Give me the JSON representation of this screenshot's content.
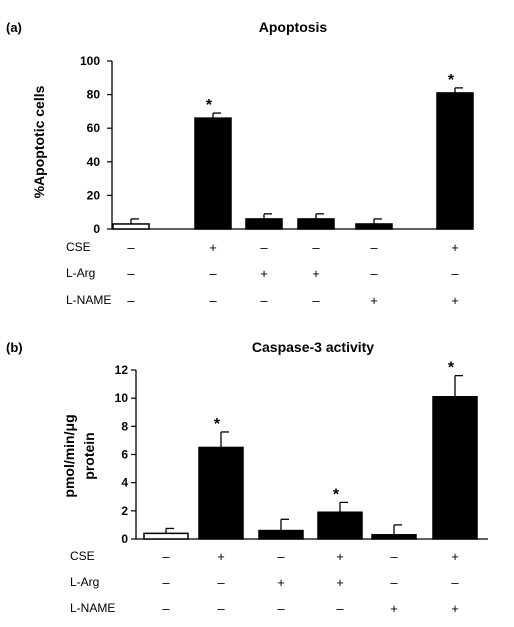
{
  "chart_data": [
    {
      "type": "bar",
      "panel_label": "(a)",
      "title": "Apoptosis",
      "xlabel": "",
      "ylabel": "%Apoptotic cells",
      "ylim": [
        0,
        100
      ],
      "yticks": [
        0,
        20,
        40,
        60,
        80,
        100
      ],
      "grid": false,
      "values": [
        3,
        66,
        6,
        6,
        3,
        81
      ],
      "errors": [
        3,
        3,
        3,
        3,
        3,
        3
      ],
      "fills": [
        "#ffffff",
        "#000000",
        "#000000",
        "#000000",
        "#000000",
        "#000000"
      ],
      "significant": [
        false,
        true,
        false,
        false,
        false,
        true
      ],
      "star_symbol": "*",
      "conditions": [
        {
          "label": "CSE",
          "signs": [
            "–",
            "+",
            "–",
            "–",
            "–",
            "+"
          ]
        },
        {
          "label": "L-Arg",
          "signs": [
            "–",
            "–",
            "+",
            "+",
            "–",
            "–"
          ]
        },
        {
          "label": "L-NAME",
          "signs": [
            "–",
            "–",
            "–",
            "–",
            "+",
            "+"
          ]
        }
      ]
    },
    {
      "type": "bar",
      "panel_label": "(b)",
      "title": "Caspase-3 activity",
      "xlabel": "",
      "ylabel_lines": [
        "pmol/min/μg",
        "protein"
      ],
      "ylim": [
        0,
        12
      ],
      "yticks": [
        0,
        2,
        4,
        6,
        8,
        10,
        12
      ],
      "grid": false,
      "values": [
        0.4,
        6.5,
        0.6,
        1.9,
        0.3,
        10.1
      ],
      "errors": [
        0.35,
        1.1,
        0.8,
        0.7,
        0.7,
        1.5
      ],
      "fills": [
        "#ffffff",
        "#000000",
        "#000000",
        "#000000",
        "#000000",
        "#000000"
      ],
      "significant": [
        false,
        true,
        false,
        true,
        false,
        true
      ],
      "star_symbol": "*",
      "conditions": [
        {
          "label": "CSE",
          "signs": [
            "–",
            "+",
            "–",
            "+",
            "–",
            "+"
          ]
        },
        {
          "label": "L-Arg",
          "signs": [
            "–",
            "–",
            "+",
            "+",
            "–",
            "–"
          ]
        },
        {
          "label": "L-NAME",
          "signs": [
            "–",
            "–",
            "–",
            "–",
            "+",
            "+"
          ]
        }
      ]
    }
  ]
}
